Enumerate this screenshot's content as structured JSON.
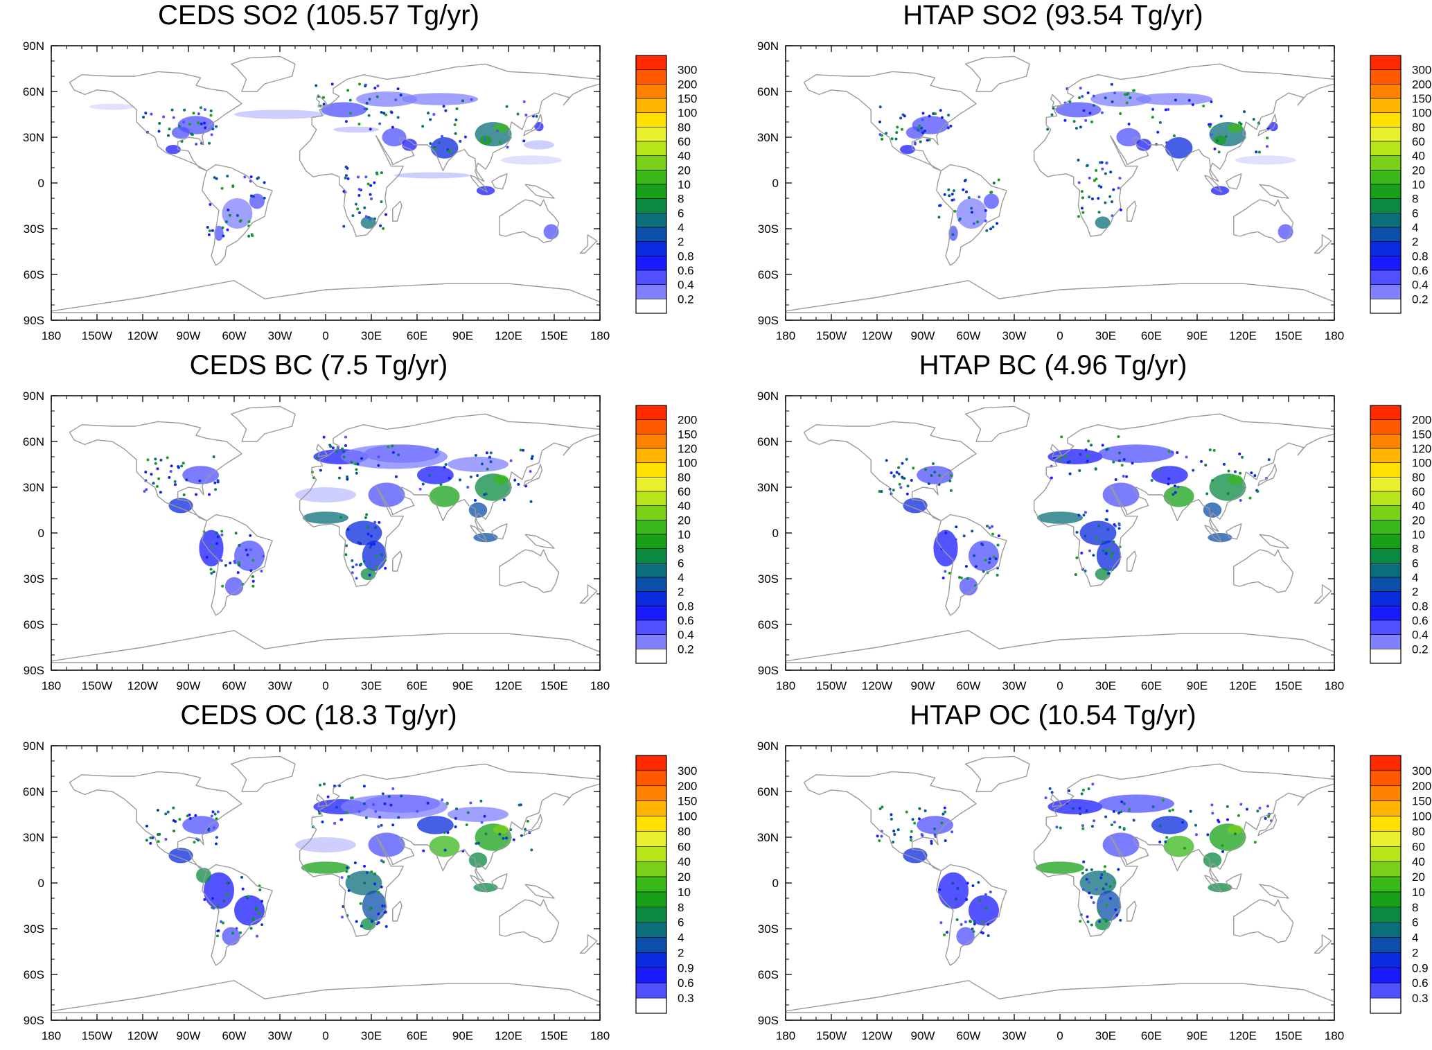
{
  "colors": {
    "scale": [
      "#ffffff",
      "#c8c8ff",
      "#a8a8ff",
      "#8080ff",
      "#5050ff",
      "#1a1aff",
      "#0a2adf",
      "#0b4faa",
      "#0b6e7a",
      "#0a8a40",
      "#18a018",
      "#3ab81a",
      "#7ad018",
      "#b8e41a",
      "#e8f030",
      "#ffe000",
      "#ffb400",
      "#ff8200",
      "#ff5a00",
      "#ff2a00"
    ],
    "coast": "#9a9a9a",
    "frame": "#000000"
  },
  "axis": {
    "lat_labels": [
      "90N",
      "60N",
      "30N",
      "0",
      "30S",
      "60S",
      "90S"
    ],
    "lon_labels": [
      "180",
      "150W",
      "120W",
      "90W",
      "60W",
      "30W",
      "0",
      "30E",
      "60E",
      "90E",
      "120E",
      "150E",
      "180"
    ]
  },
  "panels": [
    {
      "key": "ceds-so2",
      "title": "CEDS SO2 (105.57 Tg/yr)",
      "levels": [
        "300",
        "200",
        "150",
        "100",
        "80",
        "60",
        "40",
        "20",
        "10",
        "8",
        "6",
        "4",
        "2",
        "0.8",
        "0.6",
        "0.4",
        "0.2"
      ]
    },
    {
      "key": "htap-so2",
      "title": "HTAP SO2 (93.54 Tg/yr)",
      "levels": [
        "300",
        "200",
        "150",
        "100",
        "80",
        "60",
        "40",
        "20",
        "10",
        "8",
        "6",
        "4",
        "2",
        "0.8",
        "0.6",
        "0.4",
        "0.2"
      ]
    },
    {
      "key": "ceds-bc",
      "title": "CEDS BC (7.5 Tg/yr)",
      "levels": [
        "200",
        "150",
        "120",
        "100",
        "80",
        "60",
        "40",
        "20",
        "10",
        "8",
        "6",
        "4",
        "2",
        "0.8",
        "0.6",
        "0.4",
        "0.2"
      ]
    },
    {
      "key": "htap-bc",
      "title": "HTAP BC (4.96 Tg/yr)",
      "levels": [
        "200",
        "150",
        "120",
        "100",
        "80",
        "60",
        "40",
        "20",
        "10",
        "8",
        "6",
        "4",
        "2",
        "0.8",
        "0.6",
        "0.4",
        "0.2"
      ]
    },
    {
      "key": "ceds-oc",
      "title": "CEDS OC (18.3 Tg/yr)",
      "levels": [
        "300",
        "200",
        "150",
        "100",
        "80",
        "60",
        "40",
        "20",
        "10",
        "8",
        "6",
        "4",
        "2",
        "0.9",
        "0.6",
        "0.3"
      ]
    },
    {
      "key": "htap-oc",
      "title": "HTAP OC (10.54 Tg/yr)",
      "levels": [
        "300",
        "200",
        "150",
        "100",
        "80",
        "60",
        "40",
        "20",
        "10",
        "8",
        "6",
        "4",
        "2",
        "0.9",
        "0.6",
        "0.3"
      ]
    }
  ]
}
